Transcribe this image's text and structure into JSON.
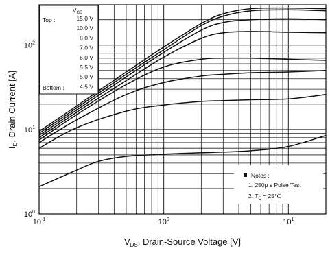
{
  "chart_data": {
    "type": "line",
    "x_scale": "log",
    "y_scale": "log",
    "xlim": [
      0.1,
      20
    ],
    "ylim": [
      1,
      300
    ],
    "grid": true,
    "xlabel": {
      "main": "V",
      "sub": "DS",
      "rest": ", Drain-Source Voltage [V]"
    },
    "ylabel": {
      "main": "I",
      "sub": "D",
      "rest": ", Drain Current [A]"
    },
    "x_ticks": [
      {
        "value": 0.1,
        "base": "10",
        "exp": "-1"
      },
      {
        "value": 1,
        "base": "10",
        "exp": "0"
      },
      {
        "value": 10,
        "base": "10",
        "exp": "1"
      }
    ],
    "y_ticks": [
      {
        "value": 1,
        "base": "10",
        "exp": "0"
      },
      {
        "value": 10,
        "base": "10",
        "exp": "1"
      },
      {
        "value": 100,
        "base": "10",
        "exp": "2"
      }
    ],
    "legend": {
      "placement": "top-left",
      "header_main": "V",
      "header_sub": "GS",
      "top_label": "Top :",
      "bottom_label": "Bottom :",
      "entries": [
        "15.0 V",
        "10.0 V",
        "8.0 V",
        "7.0 V",
        "6.0 V",
        "5.5 V",
        "5.0 V",
        "4.5 V"
      ]
    },
    "notes": {
      "placement": "bottom-right",
      "title": "Notes :",
      "line1": "1. 250μ s Pulse Test",
      "line2_main": "2. T",
      "line2_sub": "C",
      "line2_rest": " = 25℃"
    },
    "series": [
      {
        "vgs": "15.0 V",
        "x": [
          0.1,
          0.2,
          0.5,
          1,
          2,
          3,
          5,
          10,
          20
        ],
        "y": [
          9.5,
          19,
          48,
          95,
          180,
          235,
          270,
          275,
          270
        ]
      },
      {
        "vgs": "10.0 V",
        "x": [
          0.1,
          0.2,
          0.5,
          1,
          2,
          3,
          5,
          10,
          20
        ],
        "y": [
          9,
          18,
          45,
          88,
          170,
          220,
          255,
          262,
          255
        ]
      },
      {
        "vgs": "8.0 V",
        "x": [
          0.1,
          0.2,
          0.5,
          1,
          2,
          3,
          5,
          10,
          20
        ],
        "y": [
          8.5,
          17,
          42,
          82,
          150,
          185,
          200,
          205,
          200
        ]
      },
      {
        "vgs": "7.0 V",
        "x": [
          0.1,
          0.2,
          0.5,
          1,
          2,
          3,
          5,
          10,
          20
        ],
        "y": [
          8,
          16,
          38,
          72,
          120,
          140,
          145,
          142,
          140
        ]
      },
      {
        "vgs": "6.0 V",
        "x": [
          0.1,
          0.2,
          0.5,
          1,
          2,
          3,
          5,
          10,
          20
        ],
        "y": [
          7.5,
          15,
          34,
          55,
          68,
          70,
          70,
          68,
          66
        ]
      },
      {
        "vgs": "5.5 V",
        "x": [
          0.1,
          0.2,
          0.5,
          1,
          2,
          3,
          5,
          10,
          20
        ],
        "y": [
          7,
          13,
          26,
          36,
          43,
          45,
          47,
          48,
          50
        ]
      },
      {
        "vgs": "5.0 V",
        "x": [
          0.1,
          0.2,
          0.5,
          1,
          2,
          3,
          5,
          10,
          20
        ],
        "y": [
          6,
          10.5,
          16.5,
          19.5,
          21.5,
          22,
          22.5,
          23,
          26
        ]
      },
      {
        "vgs": "4.5 V",
        "x": [
          0.1,
          0.2,
          0.3,
          0.5,
          1,
          2,
          3,
          5,
          10,
          20
        ],
        "y": [
          2.1,
          3.3,
          4.2,
          4.8,
          5.1,
          5.3,
          5.4,
          5.6,
          6.3,
          8.5
        ]
      }
    ]
  }
}
